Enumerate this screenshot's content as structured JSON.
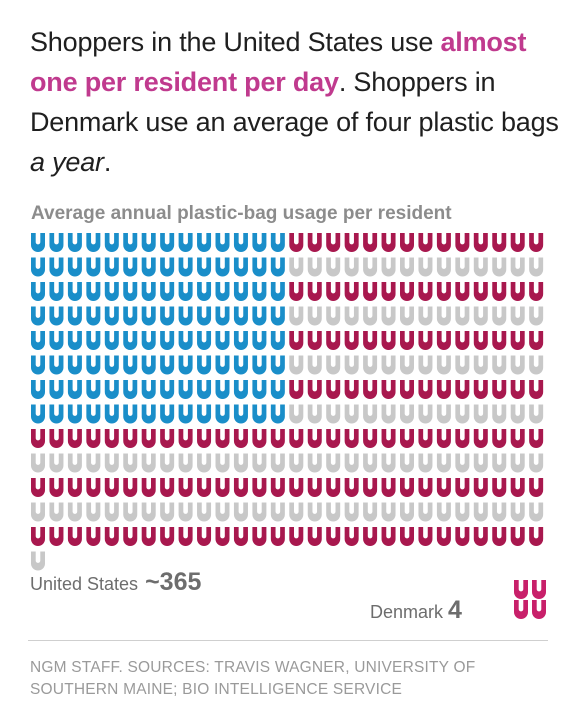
{
  "headline": {
    "part1": "Shoppers in the United States use ",
    "highlight": "almost one per resident per day",
    "part2": ". Shoppers in Denmark use an average of four plastic bags ",
    "italic": "a year",
    "part3": "."
  },
  "colors": {
    "highlight": "#c03a8e",
    "blue": "#1a8ec9",
    "red": "#a8184e",
    "gray": "#c8c8c8",
    "denmark": "#c8206a"
  },
  "chart_data": {
    "type": "icon-array",
    "title": "Average annual plastic-bag usage per resident",
    "icon": "plastic-bag-icon",
    "series": [
      {
        "name": "United States",
        "value": 365,
        "display": "~365"
      },
      {
        "name": "Denmark",
        "value": 4,
        "display": "4"
      }
    ]
  },
  "labels": {
    "us_name": "United States",
    "us_value": "~365",
    "dk_name": "Denmark",
    "dk_value": "4"
  },
  "credit": "NGM STAFF. SOURCES: TRAVIS WAGNER, UNIVERSITY OF SOUTHERN MAINE; BIO INTELLIGENCE SERVICE"
}
